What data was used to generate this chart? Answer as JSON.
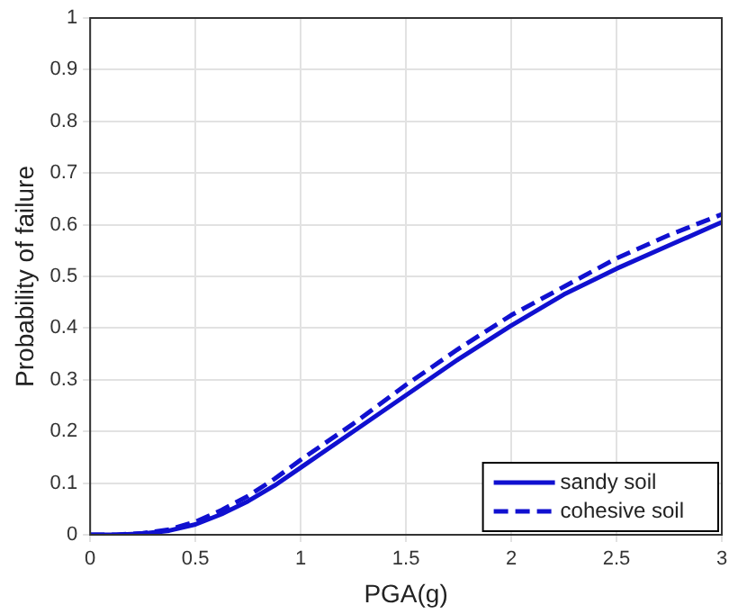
{
  "chart_data": {
    "type": "line",
    "xlabel": "PGA(g)",
    "ylabel": "Probability of failure",
    "x": [
      0,
      0.125,
      0.25,
      0.375,
      0.5,
      0.625,
      0.75,
      0.875,
      1,
      1.25,
      1.5,
      1.75,
      2,
      2.25,
      2.5,
      2.75,
      3
    ],
    "series": [
      {
        "name": "sandy soil",
        "color": "#1010d0",
        "line_style": "solid",
        "values": [
          0,
          0,
          0.002,
          0.008,
          0.02,
          0.04,
          0.065,
          0.095,
          0.13,
          0.2,
          0.27,
          0.34,
          0.405,
          0.465,
          0.515,
          0.56,
          0.605
        ]
      },
      {
        "name": "cohesive soil",
        "color": "#1010d0",
        "line_style": "dashed",
        "values": [
          0,
          0,
          0.003,
          0.01,
          0.025,
          0.048,
          0.075,
          0.108,
          0.145,
          0.215,
          0.29,
          0.36,
          0.425,
          0.48,
          0.535,
          0.58,
          0.62
        ]
      }
    ],
    "xlim": [
      0,
      3
    ],
    "xticks": [
      0,
      0.5,
      1,
      1.5,
      2,
      2.5,
      3
    ],
    "ylim": [
      0,
      1
    ],
    "yticks": [
      0,
      0.1,
      0.2,
      0.3,
      0.4,
      0.5,
      0.6,
      0.7,
      0.8,
      0.9,
      1
    ],
    "grid": true,
    "legend": "bottom right",
    "marker": "none"
  }
}
